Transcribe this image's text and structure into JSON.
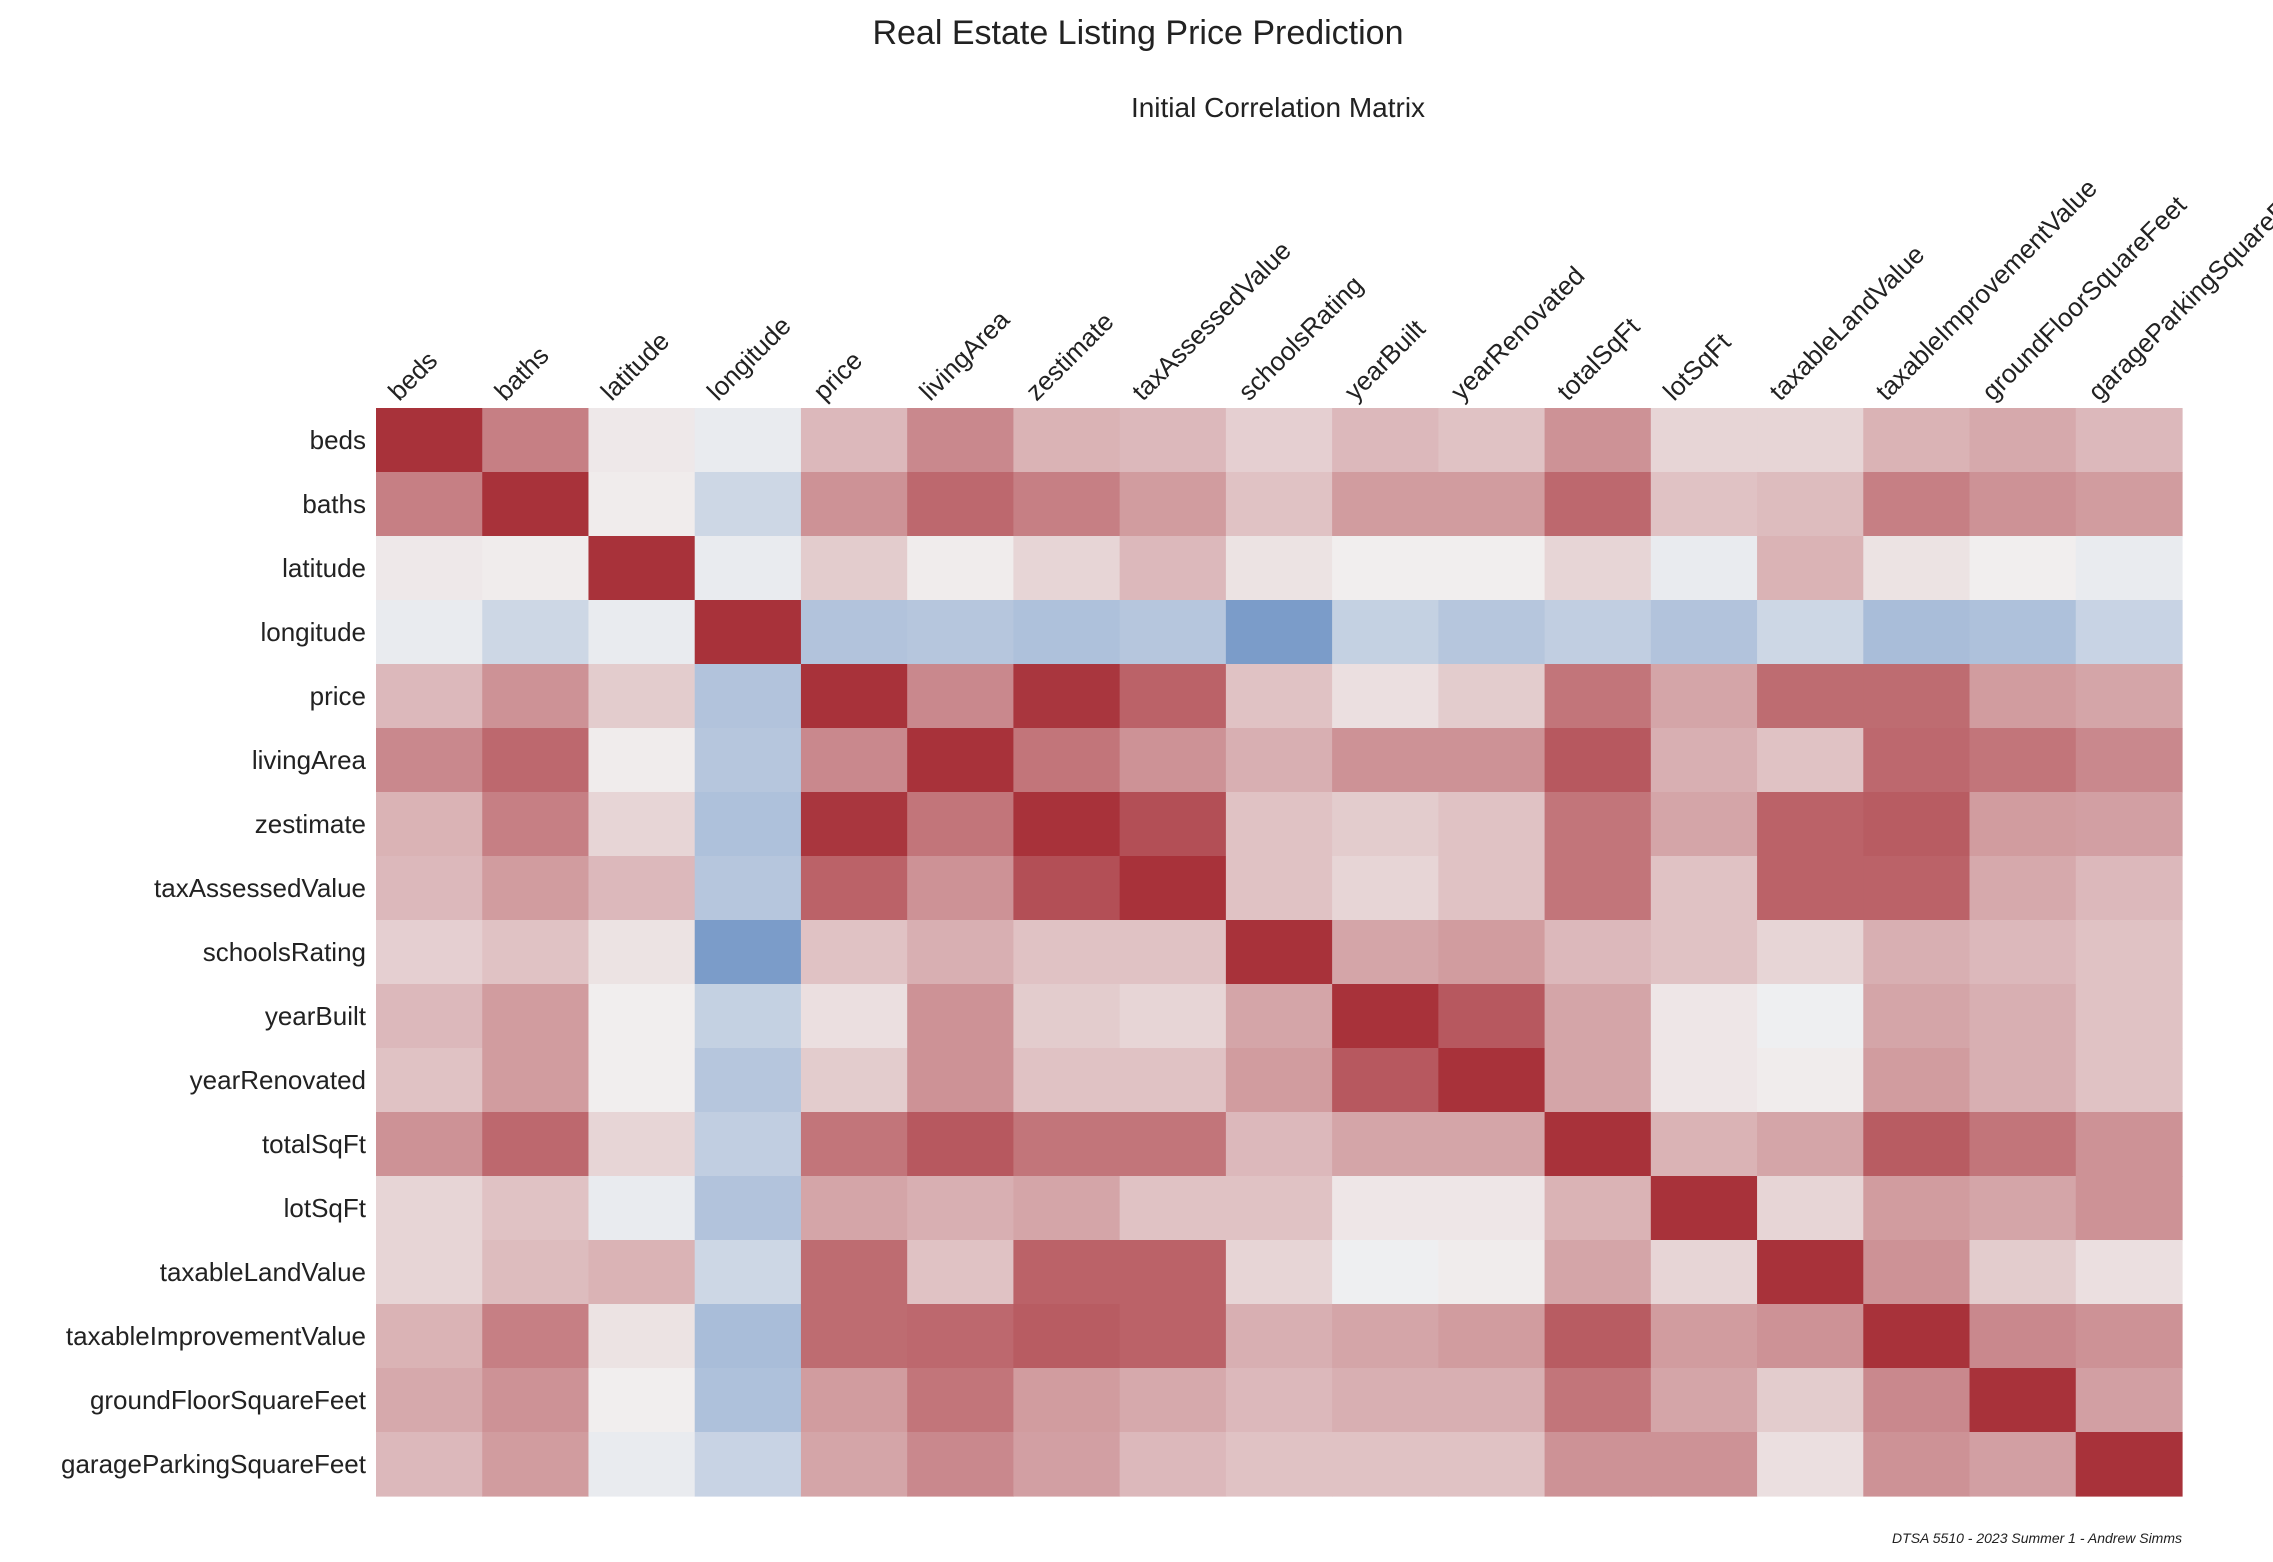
{
  "title": "Real Estate Listing Price Prediction",
  "subtitle": "Initial Correlation Matrix",
  "credit": "DTSA 5510 - 2023 Summer 1 - Andrew Simms",
  "colors": {
    "negative": "#3b6db3",
    "neutral": "#f2f2f2",
    "positive": "#a8323a"
  },
  "chart_data": {
    "type": "heatmap",
    "title": "Initial Correlation Matrix",
    "colormap": "diverging blue-white-red",
    "value_range": [
      -1,
      1
    ],
    "labels": [
      "beds",
      "baths",
      "latitude",
      "longitude",
      "price",
      "livingArea",
      "zestimate",
      "taxAssessedValue",
      "schoolsRating",
      "yearBuilt",
      "yearRenovated",
      "totalSqFt",
      "lotSqFt",
      "taxableLandValue",
      "taxableImprovementValue",
      "groundFloorSquareFeet",
      "garageParkingSquareFeet"
    ],
    "matrix": [
      [
        1.0,
        0.6,
        0.05,
        -0.05,
        0.3,
        0.55,
        0.33,
        0.3,
        0.18,
        0.3,
        0.25,
        0.5,
        0.15,
        0.15,
        0.33,
        0.38,
        0.3
      ],
      [
        0.6,
        1.0,
        0.03,
        -0.2,
        0.5,
        0.72,
        0.6,
        0.45,
        0.25,
        0.45,
        0.45,
        0.72,
        0.25,
        0.28,
        0.6,
        0.5,
        0.45
      ],
      [
        0.05,
        0.03,
        1.0,
        -0.05,
        0.2,
        0.03,
        0.15,
        0.3,
        0.08,
        0.02,
        0.02,
        0.15,
        -0.05,
        0.33,
        0.08,
        0.02,
        -0.05
      ],
      [
        -0.05,
        -0.2,
        -0.05,
        1.0,
        -0.35,
        -0.33,
        -0.37,
        -0.33,
        -0.65,
        -0.25,
        -0.33,
        -0.27,
        -0.35,
        -0.2,
        -0.4,
        -0.37,
        -0.23
      ],
      [
        0.3,
        0.5,
        0.2,
        -0.35,
        1.0,
        0.55,
        0.98,
        0.75,
        0.25,
        0.1,
        0.2,
        0.65,
        0.4,
        0.7,
        0.7,
        0.45,
        0.4
      ],
      [
        0.55,
        0.72,
        0.03,
        -0.33,
        0.55,
        1.0,
        0.65,
        0.5,
        0.35,
        0.5,
        0.5,
        0.8,
        0.35,
        0.25,
        0.72,
        0.65,
        0.55
      ],
      [
        0.33,
        0.6,
        0.15,
        -0.37,
        0.98,
        0.65,
        1.0,
        0.85,
        0.25,
        0.2,
        0.25,
        0.65,
        0.4,
        0.75,
        0.78,
        0.45,
        0.43
      ],
      [
        0.3,
        0.45,
        0.3,
        -0.33,
        0.75,
        0.5,
        0.85,
        1.0,
        0.25,
        0.15,
        0.25,
        0.65,
        0.25,
        0.75,
        0.75,
        0.38,
        0.3
      ],
      [
        0.18,
        0.25,
        0.08,
        -0.65,
        0.25,
        0.35,
        0.25,
        0.25,
        1.0,
        0.4,
        0.45,
        0.3,
        0.25,
        0.15,
        0.35,
        0.3,
        0.25
      ],
      [
        0.3,
        0.45,
        0.02,
        -0.25,
        0.1,
        0.5,
        0.2,
        0.15,
        0.4,
        1.0,
        0.8,
        0.4,
        0.06,
        -0.02,
        0.4,
        0.35,
        0.25
      ],
      [
        0.25,
        0.45,
        0.02,
        -0.33,
        0.2,
        0.5,
        0.25,
        0.25,
        0.45,
        0.8,
        1.0,
        0.4,
        0.06,
        0.03,
        0.45,
        0.35,
        0.25
      ],
      [
        0.5,
        0.72,
        0.15,
        -0.27,
        0.65,
        0.8,
        0.65,
        0.65,
        0.3,
        0.4,
        0.4,
        1.0,
        0.33,
        0.4,
        0.78,
        0.65,
        0.5
      ],
      [
        0.15,
        0.25,
        -0.05,
        -0.35,
        0.4,
        0.35,
        0.4,
        0.25,
        0.25,
        0.06,
        0.06,
        0.33,
        1.0,
        0.15,
        0.45,
        0.4,
        0.5
      ],
      [
        0.15,
        0.28,
        0.33,
        -0.2,
        0.7,
        0.25,
        0.75,
        0.75,
        0.15,
        -0.02,
        0.03,
        0.4,
        0.15,
        1.0,
        0.5,
        0.2,
        0.1
      ],
      [
        0.33,
        0.6,
        0.08,
        -0.4,
        0.7,
        0.72,
        0.78,
        0.75,
        0.35,
        0.4,
        0.45,
        0.78,
        0.45,
        0.5,
        1.0,
        0.55,
        0.5
      ],
      [
        0.38,
        0.5,
        0.02,
        -0.37,
        0.45,
        0.65,
        0.45,
        0.38,
        0.3,
        0.35,
        0.35,
        0.65,
        0.4,
        0.2,
        0.55,
        1.0,
        0.43
      ],
      [
        0.3,
        0.45,
        -0.05,
        -0.23,
        0.4,
        0.55,
        0.43,
        0.3,
        0.25,
        0.25,
        0.25,
        0.5,
        0.5,
        0.1,
        0.5,
        0.43,
        1.0
      ]
    ]
  }
}
